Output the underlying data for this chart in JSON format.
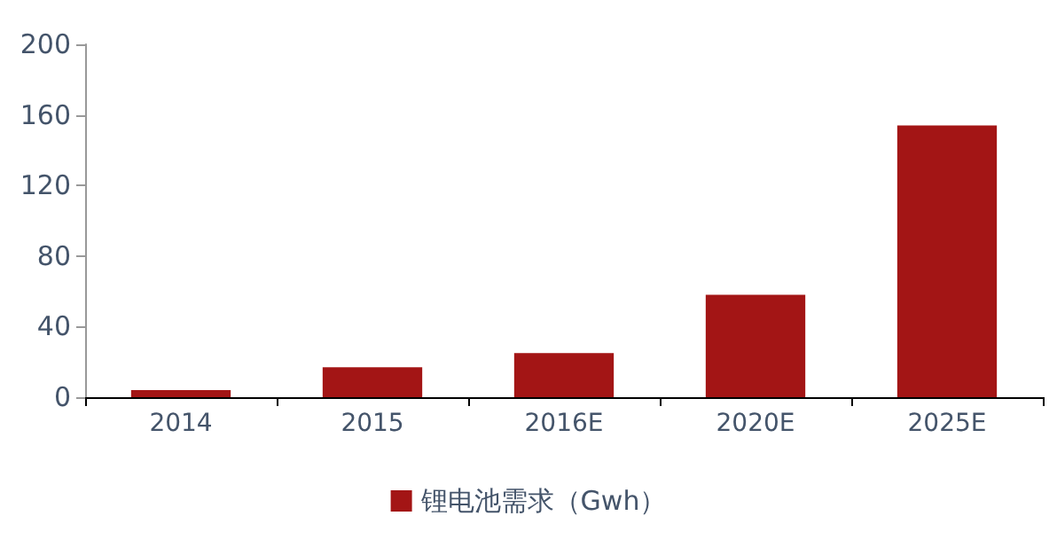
{
  "chart_data": {
    "type": "bar",
    "categories": [
      "2014",
      "2015",
      "2016E",
      "2020E",
      "2025E"
    ],
    "series": [
      {
        "name": "锂电池需求（Gwh）",
        "color": "#a31515",
        "values": [
          4,
          17,
          25,
          58,
          154
        ]
      }
    ],
    "ylim": [
      0,
      200
    ],
    "yticks": [
      0,
      40,
      80,
      120,
      160,
      200
    ],
    "grid": false,
    "legend": "bottom"
  }
}
